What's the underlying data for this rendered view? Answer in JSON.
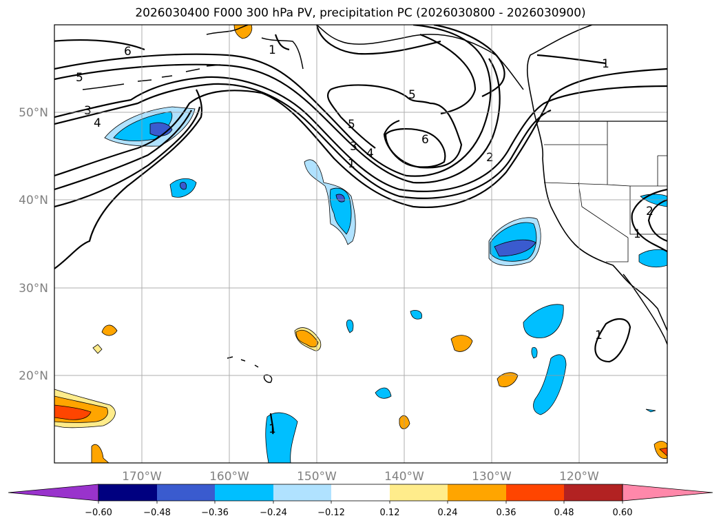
{
  "title": "2026030400 F000 300 hPa PV, precipitation PC (2026030800 - 2026030900)",
  "map": {
    "lat_labels": [
      "50°N",
      "40°N",
      "30°N",
      "20°N"
    ],
    "lon_labels": [
      "170°W",
      "160°W",
      "150°W",
      "140°W",
      "130°W",
      "120°W"
    ]
  },
  "colorbar": {
    "tick_labels": [
      "−0.60",
      "−0.48",
      "−0.36",
      "−0.24",
      "−0.12",
      "0.12",
      "0.24",
      "0.36",
      "0.48",
      "0.60"
    ],
    "colors": {
      "extend_low": "#9933cc",
      "b1": "#000080",
      "b2": "#3a5bcf",
      "b3": "#00bfff",
      "b4": "#b0e2ff",
      "zero": "#ffffff",
      "r1": "#ffec8b",
      "r2": "#ffa500",
      "r3": "#ff4500",
      "r4": "#b22222",
      "extend_high": "#ff88aa"
    }
  },
  "pv_contour_labels": [
    "6",
    "5",
    "3",
    "4",
    "5",
    "3",
    "4",
    "1",
    "6",
    "5",
    "2",
    "1",
    "2",
    "1",
    "1",
    "1",
    "1"
  ]
}
